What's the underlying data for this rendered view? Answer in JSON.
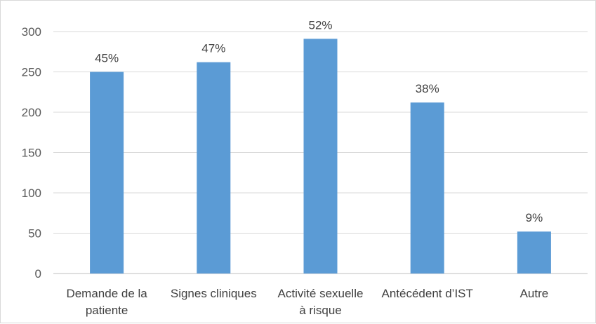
{
  "chart_data": {
    "type": "bar",
    "categories": [
      [
        "Demande de la",
        "patiente"
      ],
      [
        "Signes cliniques"
      ],
      [
        "Activité sexuelle",
        "à risque"
      ],
      [
        "Antécédent d’IST"
      ],
      [
        "Autre"
      ]
    ],
    "values": [
      250,
      262,
      291,
      212,
      52
    ],
    "data_labels": [
      "45%",
      "47%",
      "52%",
      "38%",
      "9%"
    ],
    "y_ticks": [
      "0",
      "50",
      "100",
      "150",
      "200",
      "250",
      "300"
    ],
    "ylim": [
      0,
      300
    ],
    "grid": true,
    "legend": "none",
    "bar_color": "#5b9bd5",
    "title": "",
    "xlabel": "",
    "ylabel": ""
  }
}
